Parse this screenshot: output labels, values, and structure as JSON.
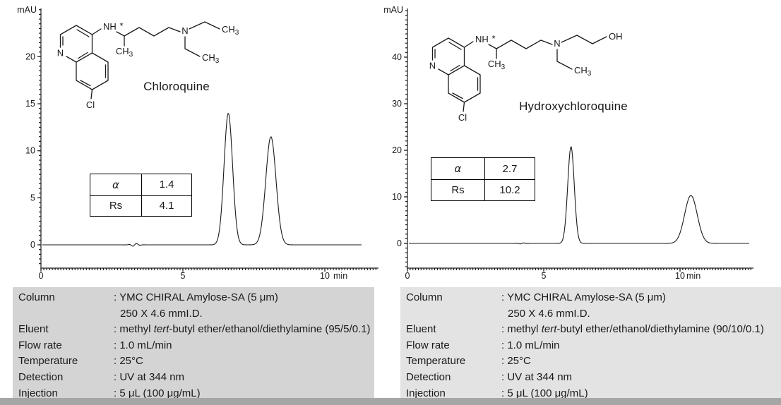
{
  "figure": {
    "left": {
      "compound": "Chloroquine",
      "params": {
        "alpha_label": "α",
        "alpha_value": "1.4",
        "rs_label": "Rs",
        "rs_value": "4.1"
      },
      "conditions": {
        "column_label": "Column",
        "column_value": ": YMC CHIRAL Amylose-SA (5 μm)",
        "column_value2": "250 X 4.6 mmI.D.",
        "eluent_label": "Eluent",
        "eluent_pre": ": methyl ",
        "eluent_italic": "tert",
        "eluent_post": "-butyl ether/ethanol/diethylamine (95/5/0.1)",
        "flow_label": "Flow rate",
        "flow_value": ": 1.0 mL/min",
        "temp_label": "Temperature",
        "temp_value": ": 25°C",
        "det_label": "Detection",
        "det_value": ": UV at 344 nm",
        "inj_label": "Injection",
        "inj_value": ": 5 μL (100 μg/mL)"
      }
    },
    "right": {
      "compound": "Hydroxychloroquine",
      "params": {
        "alpha_label": "α",
        "alpha_value": "2.7",
        "rs_label": "Rs",
        "rs_value": "10.2"
      },
      "conditions": {
        "column_label": "Column",
        "column_value": ": YMC CHIRAL Amylose-SA (5 μm)",
        "column_value2": "250 X 4.6 mmI.D.",
        "eluent_label": "Eluent",
        "eluent_pre": ": methyl ",
        "eluent_italic": "tert",
        "eluent_post": "-butyl ether/ethanol/diethylamine (90/10/0.1)",
        "flow_label": "Flow rate",
        "flow_value": ": 1.0 mL/min",
        "temp_label": "Temperature",
        "temp_value": ": 25°C",
        "det_label": "Detection",
        "det_value": ": UV at 344 nm",
        "inj_label": "Injection",
        "inj_value": ": 5 μL (100 μg/mL)"
      }
    }
  },
  "chart_data": [
    {
      "type": "line",
      "title": "Chloroquine",
      "ylabel": "mAU",
      "x_unit": "min",
      "y_ticks": [
        0,
        5,
        10,
        15,
        20
      ],
      "x_ticks": [
        0,
        5,
        10
      ],
      "ylim": [
        -2.5,
        25
      ],
      "xlim": [
        0,
        11.9
      ],
      "baseline_mau": 0,
      "peaks": [
        {
          "t_min": 6.6,
          "height_mau": 14.0,
          "sigma_min": 0.15
        },
        {
          "t_min": 8.1,
          "height_mau": 11.5,
          "sigma_min": 0.18
        }
      ],
      "disturbance": {
        "t_min": 3.3,
        "amp_mau": 0.17
      },
      "separation": {
        "alpha": 1.4,
        "Rs": 4.1
      }
    },
    {
      "type": "line",
      "title": "Hydroxychloroquine",
      "ylabel": "mAU",
      "x_unit": "min",
      "y_ticks": [
        0,
        10,
        20,
        30,
        40
      ],
      "x_ticks": [
        0,
        5,
        10
      ],
      "ylim": [
        -5,
        50
      ],
      "xlim": [
        0,
        12.6
      ],
      "baseline_mau": 0,
      "peaks": [
        {
          "t_min": 6.0,
          "height_mau": 20.8,
          "sigma_min": 0.12
        },
        {
          "t_min": 10.4,
          "height_mau": 10.3,
          "sigma_min": 0.23
        }
      ],
      "disturbance": {
        "t_min": 4.2,
        "amp_mau": 0.12
      },
      "separation": {
        "alpha": 2.7,
        "Rs": 10.2
      }
    }
  ],
  "structures": {
    "chloroquine": {
      "title": "Chloroquine",
      "ring_n": "N",
      "chlorine": "Cl",
      "nh": "NH",
      "stereocenter": "*",
      "methyl": "CH",
      "methyl_sub": "3",
      "amine_n": "N",
      "ethyl1": "CH",
      "ethyl1_sub": "3",
      "ethyl2": "CH",
      "ethyl2_sub": "3"
    },
    "hydroxychloroquine": {
      "title": "Hydroxychloroquine",
      "ring_n": "N",
      "chlorine": "Cl",
      "nh": "NH",
      "stereocenter": "*",
      "methyl": "CH",
      "methyl_sub": "3",
      "amine_n": "N",
      "hydroxyl": "OH",
      "ethyl": "CH",
      "ethyl_sub": "3"
    }
  }
}
